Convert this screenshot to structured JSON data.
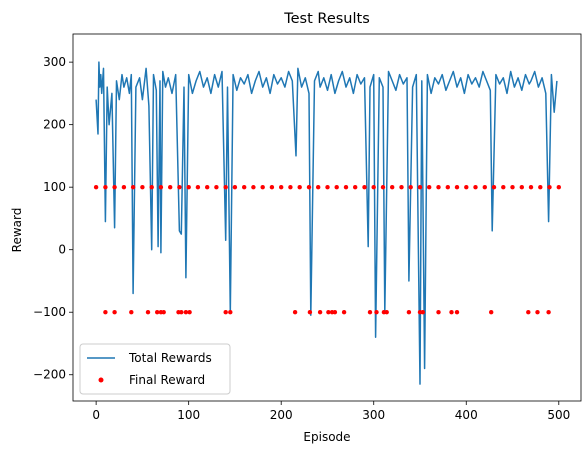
{
  "chart_data": {
    "type": "line",
    "title": "Test Results",
    "xlabel": "Episode",
    "ylabel": "Reward",
    "xlim": [
      -25,
      524
    ],
    "ylim": [
      -242,
      345
    ],
    "xticks": [
      0,
      100,
      200,
      300,
      400,
      500
    ],
    "yticks": [
      -200,
      -100,
      0,
      100,
      200,
      300
    ],
    "grid": false,
    "legend_position": "lower-left",
    "series": [
      {
        "name": "Total Rewards",
        "kind": "line",
        "color": "#1f77b4",
        "x": [
          0,
          2,
          3,
          4,
          5,
          6,
          8,
          10,
          12,
          14,
          17,
          20,
          22,
          25,
          28,
          30,
          33,
          36,
          38,
          40,
          43,
          47,
          50,
          54,
          57,
          60,
          62,
          65,
          67,
          69,
          70,
          72,
          75,
          78,
          82,
          86,
          90,
          92,
          95,
          97,
          100,
          104,
          108,
          112,
          116,
          120,
          124,
          128,
          132,
          136,
          140,
          142,
          145,
          148,
          152,
          156,
          160,
          164,
          168,
          172,
          176,
          180,
          184,
          188,
          192,
          196,
          200,
          204,
          208,
          212,
          216,
          218,
          222,
          226,
          230,
          232,
          236,
          240,
          242,
          246,
          250,
          254,
          258,
          262,
          266,
          270,
          274,
          278,
          282,
          286,
          290,
          294,
          296,
          300,
          302,
          306,
          310,
          312,
          316,
          320,
          324,
          328,
          332,
          336,
          338,
          342,
          346,
          350,
          352,
          355,
          358,
          362,
          366,
          370,
          374,
          378,
          382,
          386,
          390,
          394,
          398,
          402,
          406,
          410,
          414,
          418,
          422,
          426,
          428,
          432,
          436,
          440,
          444,
          448,
          452,
          456,
          460,
          464,
          468,
          470,
          474,
          478,
          482,
          486,
          489,
          492,
          495,
          498
        ],
        "y": [
          240,
          185,
          300,
          260,
          280,
          250,
          290,
          45,
          260,
          200,
          250,
          35,
          270,
          240,
          280,
          260,
          275,
          250,
          280,
          -70,
          260,
          275,
          240,
          290,
          230,
          0,
          280,
          255,
          5,
          270,
          -5,
          285,
          260,
          275,
          250,
          280,
          30,
          25,
          260,
          -45,
          280,
          250,
          270,
          285,
          260,
          275,
          250,
          280,
          260,
          285,
          15,
          260,
          -100,
          280,
          255,
          275,
          265,
          280,
          250,
          270,
          285,
          260,
          275,
          250,
          280,
          265,
          275,
          260,
          285,
          270,
          150,
          290,
          260,
          275,
          250,
          -105,
          270,
          285,
          260,
          275,
          255,
          280,
          250,
          270,
          285,
          260,
          275,
          250,
          280,
          265,
          275,
          5,
          260,
          280,
          -140,
          275,
          260,
          -100,
          285,
          270,
          255,
          280,
          265,
          275,
          -50,
          260,
          280,
          -215,
          270,
          -190,
          280,
          250,
          275,
          265,
          280,
          255,
          270,
          285,
          260,
          275,
          250,
          280,
          265,
          275,
          260,
          285,
          270,
          255,
          30,
          280,
          265,
          275,
          250,
          285,
          260,
          275,
          255,
          280,
          265,
          270,
          285,
          260,
          275,
          250,
          45,
          280,
          220,
          270
        ]
      },
      {
        "name": "Final Reward",
        "kind": "scatter",
        "color": "#ff0000",
        "x": [
          0,
          10,
          20,
          30,
          40,
          50,
          60,
          70,
          80,
          90,
          100,
          110,
          120,
          130,
          140,
          150,
          160,
          170,
          180,
          190,
          200,
          210,
          220,
          230,
          240,
          250,
          260,
          270,
          280,
          290,
          300,
          310,
          320,
          330,
          340,
          350,
          360,
          370,
          380,
          390,
          400,
          410,
          420,
          430,
          440,
          450,
          460,
          470,
          480,
          490,
          500,
          10,
          20,
          38,
          56,
          66,
          70,
          73,
          89,
          92,
          97,
          101,
          140,
          145,
          215,
          231,
          242,
          251,
          255,
          258,
          268,
          296,
          303,
          311,
          314,
          338,
          350,
          353,
          370,
          384,
          390,
          427,
          467,
          477,
          489
        ],
        "y": [
          100,
          100,
          100,
          100,
          100,
          100,
          100,
          100,
          100,
          100,
          100,
          100,
          100,
          100,
          100,
          100,
          100,
          100,
          100,
          100,
          100,
          100,
          100,
          100,
          100,
          100,
          100,
          100,
          100,
          100,
          100,
          100,
          100,
          100,
          100,
          100,
          100,
          100,
          100,
          100,
          100,
          100,
          100,
          100,
          100,
          100,
          100,
          100,
          100,
          100,
          100,
          -100,
          -100,
          -100,
          -100,
          -100,
          -100,
          -100,
          -100,
          -100,
          -100,
          -100,
          -100,
          -100,
          -100,
          -100,
          -100,
          -100,
          -100,
          -100,
          -100,
          -100,
          -100,
          -100,
          -100,
          -100,
          -100,
          -100,
          -100,
          -100,
          -100,
          -100,
          -100,
          -100,
          -100
        ]
      }
    ],
    "legend": [
      {
        "label": "Total Rewards",
        "kind": "line",
        "color": "#1f77b4"
      },
      {
        "label": "Final Reward",
        "kind": "scatter",
        "color": "#ff0000"
      }
    ]
  }
}
